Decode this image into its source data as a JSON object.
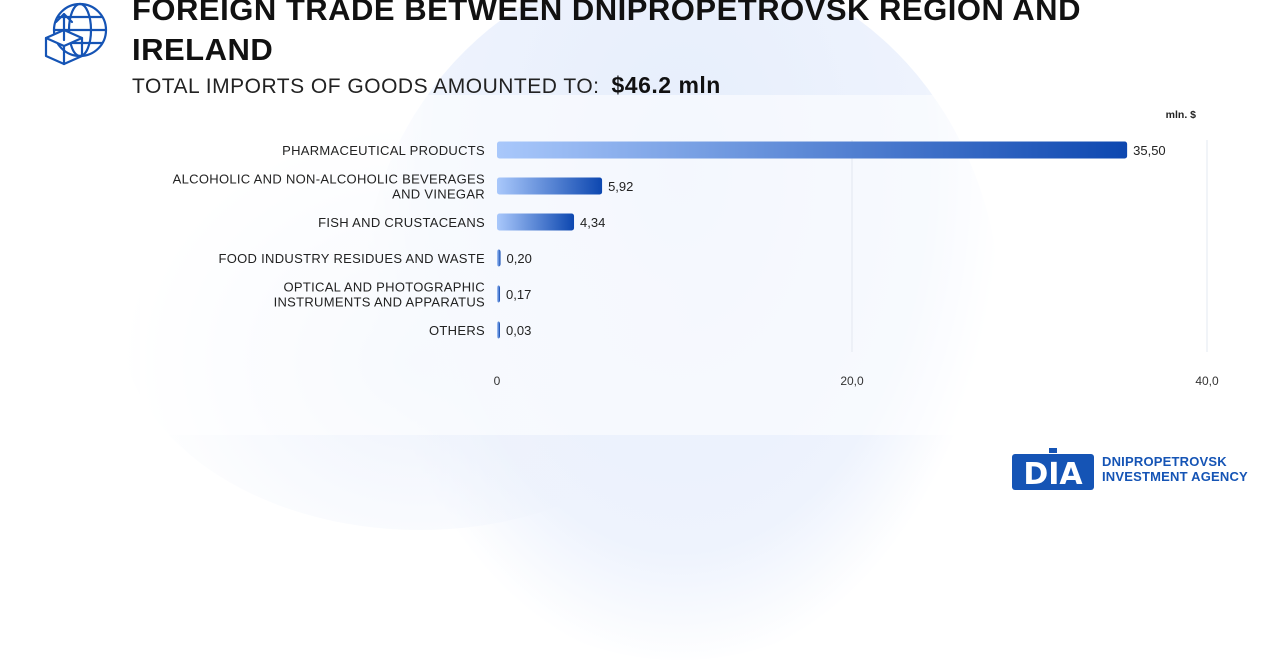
{
  "header": {
    "title_line1": "FOREIGN TRADE BETWEEN DNIPROPETROVSK REGION AND",
    "title_line2": "IRELAND",
    "subtitle_label": "TOTAL IMPORTS OF GOODS AMOUNTED TO:",
    "subtitle_value": "$46.2 mln",
    "icon": "globe-box-upload-icon"
  },
  "chart_data": {
    "type": "bar",
    "orientation": "horizontal",
    "unit_label": "mln. $",
    "categories": [
      [
        "PHARMACEUTICAL PRODUCTS"
      ],
      [
        "ALCOHOLIC AND NON-ALCOHOLIC BEVERAGES",
        "AND VINEGAR"
      ],
      [
        "FISH AND CRUSTACEANS"
      ],
      [
        "FOOD INDUSTRY RESIDUES AND WASTE"
      ],
      [
        "OPTICAL AND PHOTOGRAPHIC",
        "INSTRUMENTS AND APPARATUS"
      ],
      [
        "OTHERS"
      ]
    ],
    "values": [
      35.5,
      5.92,
      4.34,
      0.2,
      0.17,
      0.03
    ],
    "value_labels": [
      "35,50",
      "5,92",
      "4,34",
      "0,20",
      "0,17",
      "0,03"
    ],
    "xlim": [
      0,
      40
    ],
    "x_ticks": [
      0,
      20,
      40
    ],
    "x_tick_labels": [
      "0",
      "20,0",
      "40,0"
    ],
    "grid": "vertical",
    "bar_gradient": [
      "#a9c8fb",
      "#0d47b0"
    ]
  },
  "brand": {
    "logo_text": "DIA",
    "line1": "DNIPROPETROVSK",
    "line2": "INVESTMENT AGENCY",
    "color": "#1554b5"
  }
}
